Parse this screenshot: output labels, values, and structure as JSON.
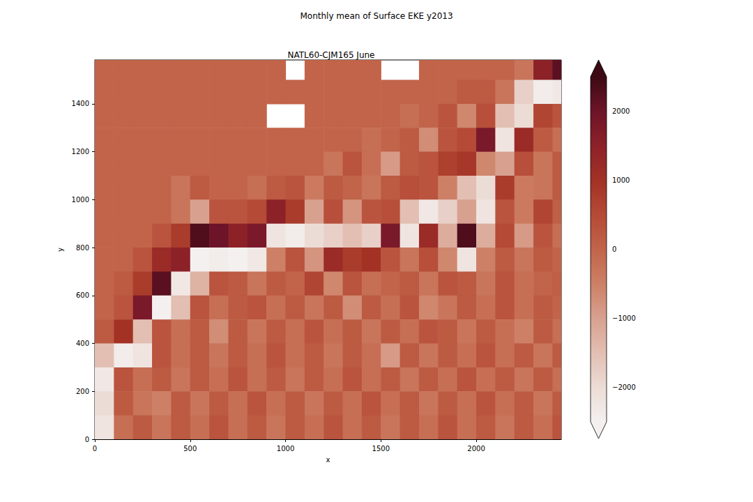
{
  "chart_data": {
    "type": "heatmap",
    "suptitle": "Monthly mean of Surface EKE y2013",
    "title": "NATL60-CJM165 June",
    "xlabel": "x",
    "ylabel": "y",
    "xlim": [
      0,
      2446
    ],
    "ylim": [
      0,
      1583
    ],
    "xticks": [
      0,
      500,
      1000,
      1500,
      2000
    ],
    "yticks": [
      0,
      200,
      400,
      600,
      800,
      1000,
      1200,
      1400
    ],
    "grid": false,
    "x_bins": [
      0,
      100,
      200,
      300,
      400,
      500,
      600,
      700,
      800,
      900,
      1000,
      1100,
      1200,
      1300,
      1400,
      1500,
      1600,
      1700,
      1800,
      1900,
      2000,
      2100,
      2200,
      2300,
      2400,
      2500
    ],
    "y_bins": [
      1600,
      1500,
      1400,
      1300,
      1200,
      1100,
      1000,
      900,
      800,
      700,
      600,
      500,
      400,
      300,
      200,
      100,
      0
    ],
    "values": [
      [
        0,
        0,
        0,
        0,
        0,
        0,
        0,
        0,
        0,
        0,
        null,
        0,
        0,
        0,
        0,
        null,
        null,
        0,
        0,
        0,
        0,
        0,
        -300,
        1500,
        2200
      ],
      [
        0,
        0,
        0,
        0,
        0,
        0,
        0,
        0,
        0,
        0,
        0,
        0,
        0,
        0,
        0,
        0,
        0,
        0,
        0,
        200,
        200,
        -300,
        -1800,
        -2400,
        -2300
      ],
      [
        0,
        0,
        0,
        0,
        0,
        0,
        0,
        0,
        0,
        null,
        null,
        0,
        0,
        0,
        0,
        0,
        -200,
        0,
        300,
        -600,
        400,
        -1500,
        -2000,
        600,
        300
      ],
      [
        0,
        0,
        0,
        0,
        0,
        0,
        0,
        0,
        0,
        0,
        0,
        0,
        0,
        0,
        -200,
        0,
        200,
        -700,
        300,
        500,
        1800,
        -2200,
        1200,
        200,
        -200
      ],
      [
        0,
        0,
        0,
        0,
        0,
        0,
        0,
        0,
        0,
        0,
        0,
        0,
        -300,
        300,
        -200,
        -900,
        200,
        300,
        700,
        900,
        -600,
        -1000,
        400,
        -300,
        200
      ],
      [
        0,
        0,
        0,
        0,
        -300,
        200,
        0,
        0,
        -200,
        200,
        300,
        -400,
        200,
        0,
        -300,
        200,
        400,
        300,
        -500,
        -1500,
        -2000,
        800,
        -400,
        -300,
        200
      ],
      [
        0,
        0,
        0,
        0,
        -300,
        -1000,
        300,
        300,
        500,
        1500,
        800,
        -1000,
        400,
        -800,
        300,
        400,
        -1500,
        -2300,
        -1800,
        -1000,
        -2200,
        300,
        -400,
        600,
        100
      ],
      [
        0,
        0,
        0,
        300,
        800,
        2300,
        2000,
        1500,
        1800,
        -2200,
        -2400,
        -2000,
        -1800,
        -1500,
        -1800,
        1800,
        -2200,
        1200,
        -1200,
        2300,
        -1200,
        500,
        -900,
        300,
        -200
      ],
      [
        0,
        0,
        300,
        1200,
        1500,
        -2500,
        -2400,
        -2500,
        -2300,
        -500,
        300,
        -800,
        1200,
        800,
        1000,
        300,
        -300,
        400,
        -600,
        -2200,
        -500,
        200,
        -300,
        200,
        0
      ],
      [
        0,
        200,
        800,
        2200,
        -2300,
        -1300,
        300,
        200,
        -300,
        200,
        0,
        600,
        -600,
        300,
        -200,
        0,
        200,
        -300,
        300,
        200,
        -300,
        300,
        -200,
        0,
        100
      ],
      [
        0,
        300,
        1800,
        -2500,
        -1500,
        300,
        -200,
        200,
        300,
        -200,
        200,
        -300,
        200,
        -700,
        200,
        -200,
        300,
        -600,
        -300,
        200,
        -200,
        300,
        -200,
        200,
        0
      ],
      [
        200,
        1000,
        -1500,
        300,
        -200,
        200,
        -700,
        200,
        -300,
        200,
        -200,
        300,
        -200,
        200,
        -300,
        200,
        -200,
        300,
        200,
        -300,
        200,
        -200,
        -500,
        200,
        -200
      ],
      [
        -1500,
        -2400,
        -2200,
        300,
        -200,
        200,
        -300,
        200,
        -200,
        300,
        -200,
        200,
        -300,
        200,
        -200,
        -900,
        200,
        -300,
        200,
        -200,
        300,
        -200,
        200,
        -300,
        200
      ],
      [
        -2300,
        300,
        -200,
        200,
        -300,
        200,
        -200,
        300,
        -200,
        200,
        -300,
        200,
        -200,
        300,
        -200,
        200,
        -300,
        200,
        -200,
        300,
        -200,
        200,
        -300,
        200,
        -200
      ],
      [
        -2000,
        200,
        -300,
        -500,
        200,
        -300,
        200,
        -200,
        300,
        -200,
        200,
        -300,
        200,
        -200,
        300,
        -200,
        200,
        -300,
        200,
        -200,
        300,
        -200,
        200,
        -300,
        200
      ],
      [
        -2200,
        -200,
        200,
        -300,
        200,
        -200,
        300,
        -200,
        200,
        -300,
        200,
        -200,
        300,
        -200,
        200,
        -300,
        200,
        -200,
        300,
        -200,
        200,
        -300,
        200,
        -200,
        300
      ]
    ],
    "colorbar": {
      "range": [
        -2500,
        2500
      ],
      "ticks": [
        {
          "value": -2000,
          "label": "−2000"
        },
        {
          "value": -1000,
          "label": "−1000"
        },
        0,
        1000,
        2000
      ]
    }
  }
}
